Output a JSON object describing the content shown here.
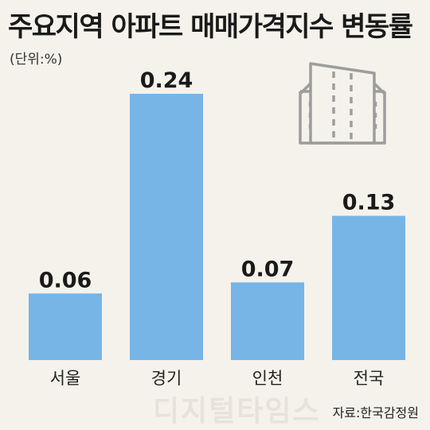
{
  "title": "주요지역 아파트 매매가격지수 변동률",
  "unit_label": "(단위:%)",
  "source": "자료:한국감정원",
  "watermark": "디지털타임스",
  "icon": "building-icon",
  "colors": {
    "bar": "#77b5e6",
    "background": "#f4f2ea",
    "icon": "#9d9d9d"
  },
  "chart_data": {
    "type": "bar",
    "title": "주요지역 아파트 매매가격지수 변동률",
    "unit": "(단위:%)",
    "categories": [
      "서울",
      "경기",
      "인천",
      "전국"
    ],
    "values": [
      0.06,
      0.24,
      0.07,
      0.13
    ],
    "value_labels": [
      "0.06",
      "0.24",
      "0.07",
      "0.13"
    ],
    "ylim": [
      0,
      0.24
    ],
    "grid": false,
    "legend": "none"
  }
}
